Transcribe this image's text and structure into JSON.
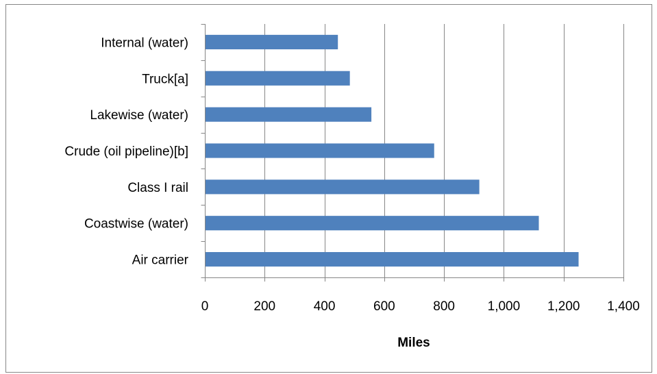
{
  "chart_data": {
    "type": "bar",
    "orientation": "horizontal",
    "title": "",
    "xlabel": "Miles",
    "ylabel": "",
    "categories": [
      "Internal (water)",
      "Truck[a]",
      "Lakewise (water)",
      "Crude (oil pipeline)[b]",
      "Class I rail",
      "Coastwise (water)",
      "Air carrier"
    ],
    "series": [
      {
        "values": [
          445,
          485,
          557,
          767,
          918,
          1117,
          1250
        ]
      }
    ],
    "xlim": [
      0,
      1400
    ],
    "x_ticks": [
      0,
      200,
      400,
      600,
      800,
      1000,
      1200,
      1400
    ],
    "x_tick_labels": [
      "0",
      "200",
      "400",
      "600",
      "800",
      "1,000",
      "1,200",
      "1,400"
    ],
    "grid": "vertical",
    "legend": "none",
    "colors": {
      "bar": "#4f81bd",
      "grid": "#868686",
      "axis": "#868686",
      "border": "#868686"
    }
  }
}
